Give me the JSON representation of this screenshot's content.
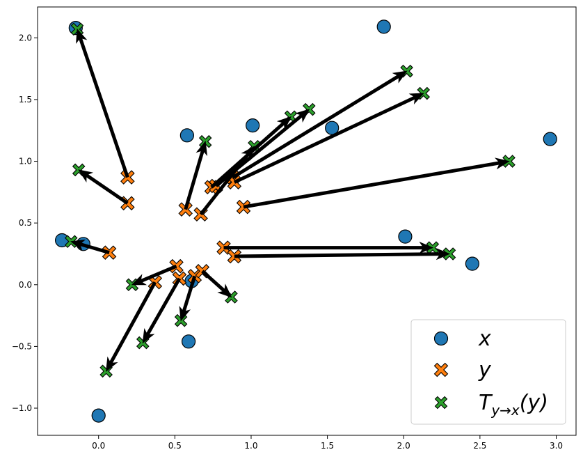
{
  "chart_data": {
    "type": "scatter",
    "title": "",
    "xlabel": "",
    "ylabel": "",
    "xlim": [
      -0.4,
      3.13
    ],
    "ylim": [
      -1.22,
      2.25
    ],
    "grid": false,
    "xticks": [
      0.0,
      0.5,
      1.0,
      1.5,
      2.0,
      2.5,
      3.0
    ],
    "xtick_labels": [
      "0.0",
      "0.5",
      "1.0",
      "1.5",
      "2.0",
      "2.5",
      "3.0"
    ],
    "yticks": [
      -1.0,
      -0.5,
      0.0,
      0.5,
      1.0,
      1.5,
      2.0
    ],
    "ytick_labels": [
      "−1.0",
      "−0.5",
      "0.0",
      "0.5",
      "1.0",
      "1.5",
      "2.0"
    ],
    "legend_position": "bottom-right",
    "series": [
      {
        "name": "x",
        "marker": "circle",
        "color": "#1f77b4",
        "points": [
          [
            -0.15,
            2.08
          ],
          [
            1.87,
            2.09
          ],
          [
            2.96,
            1.18
          ],
          [
            1.53,
            1.27
          ],
          [
            1.01,
            1.29
          ],
          [
            0.58,
            1.21
          ],
          [
            2.01,
            0.39
          ],
          [
            2.45,
            0.17
          ],
          [
            -0.24,
            0.36
          ],
          [
            -0.1,
            0.33
          ],
          [
            0.61,
            0.03
          ],
          [
            0.59,
            -0.46
          ],
          [
            0.0,
            -1.06
          ]
        ]
      },
      {
        "name": "y",
        "marker": "x",
        "color": "#ff7f0e",
        "points": [
          [
            0.19,
            0.87
          ],
          [
            0.19,
            0.66
          ],
          [
            0.57,
            0.61
          ],
          [
            0.67,
            0.57
          ],
          [
            0.74,
            0.79
          ],
          [
            0.77,
            0.8
          ],
          [
            0.88,
            0.87
          ],
          [
            0.89,
            0.83
          ],
          [
            0.95,
            0.63
          ],
          [
            0.82,
            0.3
          ],
          [
            0.89,
            0.23
          ],
          [
            0.07,
            0.26
          ],
          [
            0.51,
            0.15
          ],
          [
            0.37,
            0.02
          ],
          [
            0.53,
            0.05
          ],
          [
            0.63,
            0.07
          ],
          [
            0.68,
            0.11
          ]
        ]
      },
      {
        "name": "T_{y→x}(y)",
        "marker": "x",
        "color": "#2ca02c",
        "points": [
          [
            -0.14,
            2.07
          ],
          [
            -0.13,
            0.93
          ],
          [
            0.7,
            1.16
          ],
          [
            1.02,
            1.12
          ],
          [
            1.26,
            1.36
          ],
          [
            1.38,
            1.42
          ],
          [
            2.02,
            1.73
          ],
          [
            2.13,
            1.55
          ],
          [
            2.69,
            1.0
          ],
          [
            2.19,
            0.3
          ],
          [
            2.3,
            0.25
          ],
          [
            -0.18,
            0.35
          ],
          [
            0.22,
            0.0
          ],
          [
            0.29,
            -0.47
          ],
          [
            0.54,
            -0.29
          ],
          [
            0.87,
            -0.1
          ],
          [
            0.05,
            -0.7
          ]
        ]
      }
    ],
    "arrows": [
      {
        "from": [
          0.19,
          0.87
        ],
        "to": [
          -0.14,
          2.07
        ]
      },
      {
        "from": [
          0.19,
          0.66
        ],
        "to": [
          -0.13,
          0.93
        ]
      },
      {
        "from": [
          0.57,
          0.61
        ],
        "to": [
          0.7,
          1.16
        ]
      },
      {
        "from": [
          0.67,
          0.57
        ],
        "to": [
          1.02,
          1.12
        ]
      },
      {
        "from": [
          0.74,
          0.79
        ],
        "to": [
          1.26,
          1.36
        ]
      },
      {
        "from": [
          0.77,
          0.8
        ],
        "to": [
          1.38,
          1.42
        ]
      },
      {
        "from": [
          0.88,
          0.87
        ],
        "to": [
          2.02,
          1.73
        ]
      },
      {
        "from": [
          0.89,
          0.83
        ],
        "to": [
          2.13,
          1.55
        ]
      },
      {
        "from": [
          0.95,
          0.63
        ],
        "to": [
          2.69,
          1.0
        ]
      },
      {
        "from": [
          0.82,
          0.3
        ],
        "to": [
          2.19,
          0.3
        ]
      },
      {
        "from": [
          0.89,
          0.23
        ],
        "to": [
          2.3,
          0.25
        ]
      },
      {
        "from": [
          0.07,
          0.26
        ],
        "to": [
          -0.18,
          0.35
        ]
      },
      {
        "from": [
          0.51,
          0.15
        ],
        "to": [
          0.22,
          0.0
        ]
      },
      {
        "from": [
          0.37,
          0.02
        ],
        "to": [
          0.05,
          -0.7
        ]
      },
      {
        "from": [
          0.53,
          0.05
        ],
        "to": [
          0.29,
          -0.47
        ]
      },
      {
        "from": [
          0.63,
          0.07
        ],
        "to": [
          0.54,
          -0.29
        ]
      },
      {
        "from": [
          0.68,
          0.11
        ],
        "to": [
          0.87,
          -0.1
        ]
      }
    ],
    "legend": {
      "entries": [
        {
          "label": "x",
          "marker": "circle",
          "color": "#1f77b4"
        },
        {
          "label": "y",
          "marker": "x",
          "color": "#ff7f0e"
        },
        {
          "label_main": "T",
          "label_sub": "y→x",
          "label_tail": "(y)",
          "marker": "x",
          "color": "#2ca02c"
        }
      ]
    }
  }
}
